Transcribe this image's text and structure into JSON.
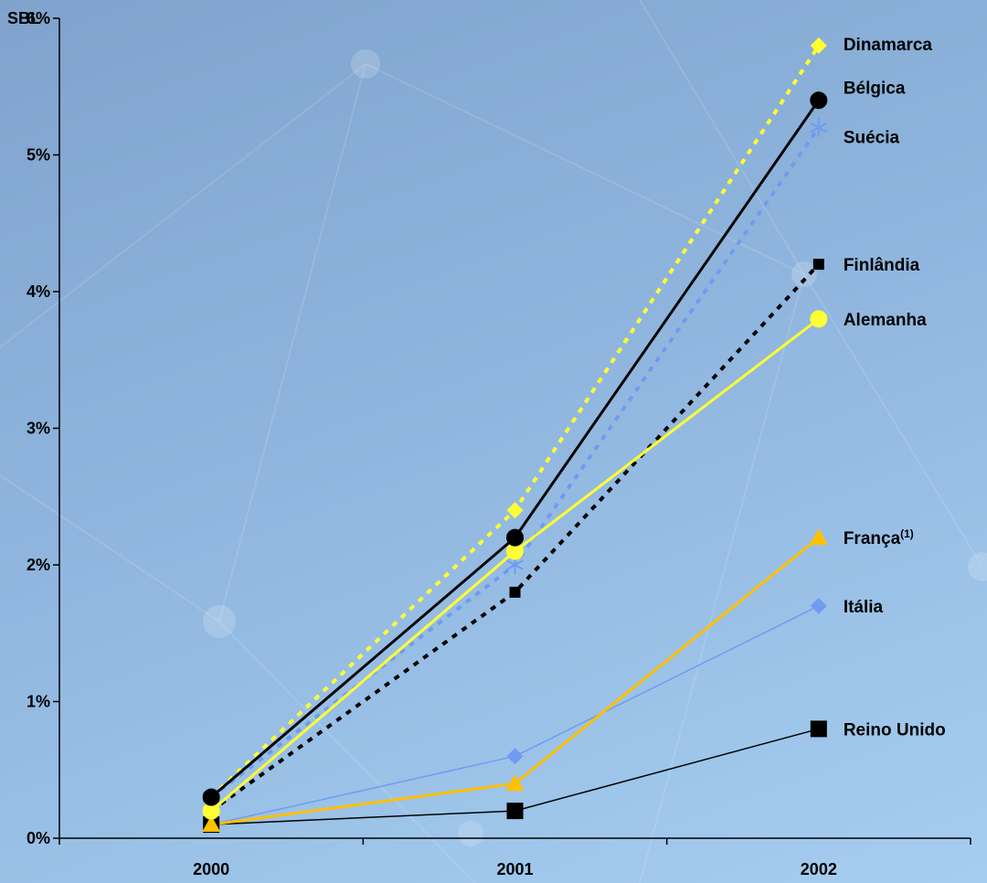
{
  "chart_data": {
    "type": "line",
    "title": "",
    "xlabel": "",
    "ylabel": "",
    "y_axis_corner_text": "SBL",
    "categories": [
      "2000",
      "2001",
      "2002"
    ],
    "ylim": [
      0,
      6
    ],
    "y_ticks": [
      {
        "value": 0,
        "label": "0%"
      },
      {
        "value": 1,
        "label": "1%"
      },
      {
        "value": 2,
        "label": "2%"
      },
      {
        "value": 3,
        "label": "3%"
      },
      {
        "value": 4,
        "label": "4%"
      },
      {
        "value": 5,
        "label": "5%"
      },
      {
        "value": 6,
        "label": "6%"
      }
    ],
    "grid": false,
    "series": [
      {
        "name": "Dinamarca",
        "values": [
          0.3,
          2.4,
          5.8
        ],
        "color": "#ffff33",
        "dash": true,
        "width": 4,
        "marker": "diamond"
      },
      {
        "name": "Bélgica",
        "values": [
          0.3,
          2.2,
          5.4
        ],
        "color": "#000000",
        "dash": false,
        "width": 3,
        "marker": "circle"
      },
      {
        "name": "Suécia",
        "values": [
          0.3,
          2.0,
          5.2
        ],
        "color": "#6f9cf0",
        "dash": true,
        "width": 4,
        "marker": "asterisk"
      },
      {
        "name": "Finlândia",
        "values": [
          0.2,
          1.8,
          4.2
        ],
        "color": "#000000",
        "dash": true,
        "width": 4,
        "marker": "square-small"
      },
      {
        "name": "Alemanha",
        "values": [
          0.2,
          2.1,
          3.8
        ],
        "color": "#ffff33",
        "dash": false,
        "width": 3,
        "marker": "circle"
      },
      {
        "name": "França",
        "name_sup": "(1)",
        "values": [
          0.1,
          0.4,
          2.2
        ],
        "color": "#ffc000",
        "dash": false,
        "width": 3,
        "marker": "triangle"
      },
      {
        "name": "Itália",
        "values": [
          0.1,
          0.6,
          1.7
        ],
        "color": "#6f9cf0",
        "dash": false,
        "width": 1.5,
        "marker": "diamond"
      },
      {
        "name": "Reino Unido",
        "values": [
          0.1,
          0.2,
          0.8
        ],
        "color": "#000000",
        "dash": false,
        "width": 1.5,
        "marker": "square"
      }
    ]
  }
}
